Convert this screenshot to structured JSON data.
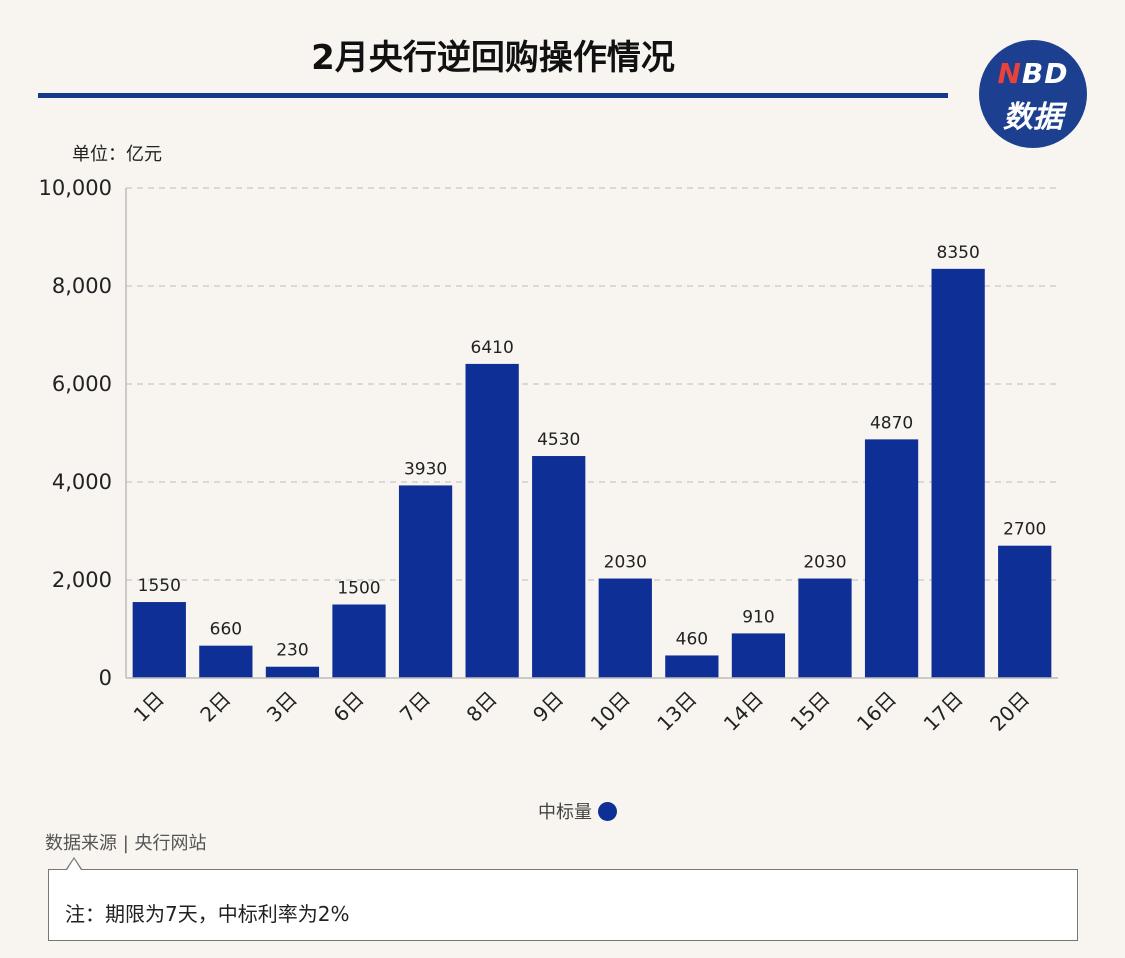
{
  "title": "2月央行逆回购操作情况",
  "logo": {
    "line1_n": "N",
    "line1_rest": "BD",
    "line2": "数据"
  },
  "unit_label": "单位：亿元",
  "legend": {
    "label": "中标量",
    "color": "#0e2f95"
  },
  "source": "数据来源 | 央行网站",
  "note": "注：期限为7天，中标利率为2%",
  "chart_data": {
    "type": "bar",
    "categories": [
      "1日",
      "2日",
      "3日",
      "6日",
      "7日",
      "8日",
      "9日",
      "10日",
      "13日",
      "14日",
      "15日",
      "16日",
      "17日",
      "20日"
    ],
    "series": [
      {
        "name": "中标量",
        "values": [
          1550,
          660,
          230,
          1500,
          3930,
          6410,
          4530,
          2030,
          460,
          910,
          2030,
          4870,
          8350,
          2700
        ]
      }
    ],
    "ylim": [
      0,
      10000
    ],
    "yticks": [
      0,
      2000,
      4000,
      6000,
      8000,
      10000
    ],
    "ytick_labels": [
      "0",
      "2,000",
      "4,000",
      "6,000",
      "8,000",
      "10,000"
    ],
    "grid": true,
    "bar_color": "#0e2f95",
    "legend_position": "bottom"
  }
}
